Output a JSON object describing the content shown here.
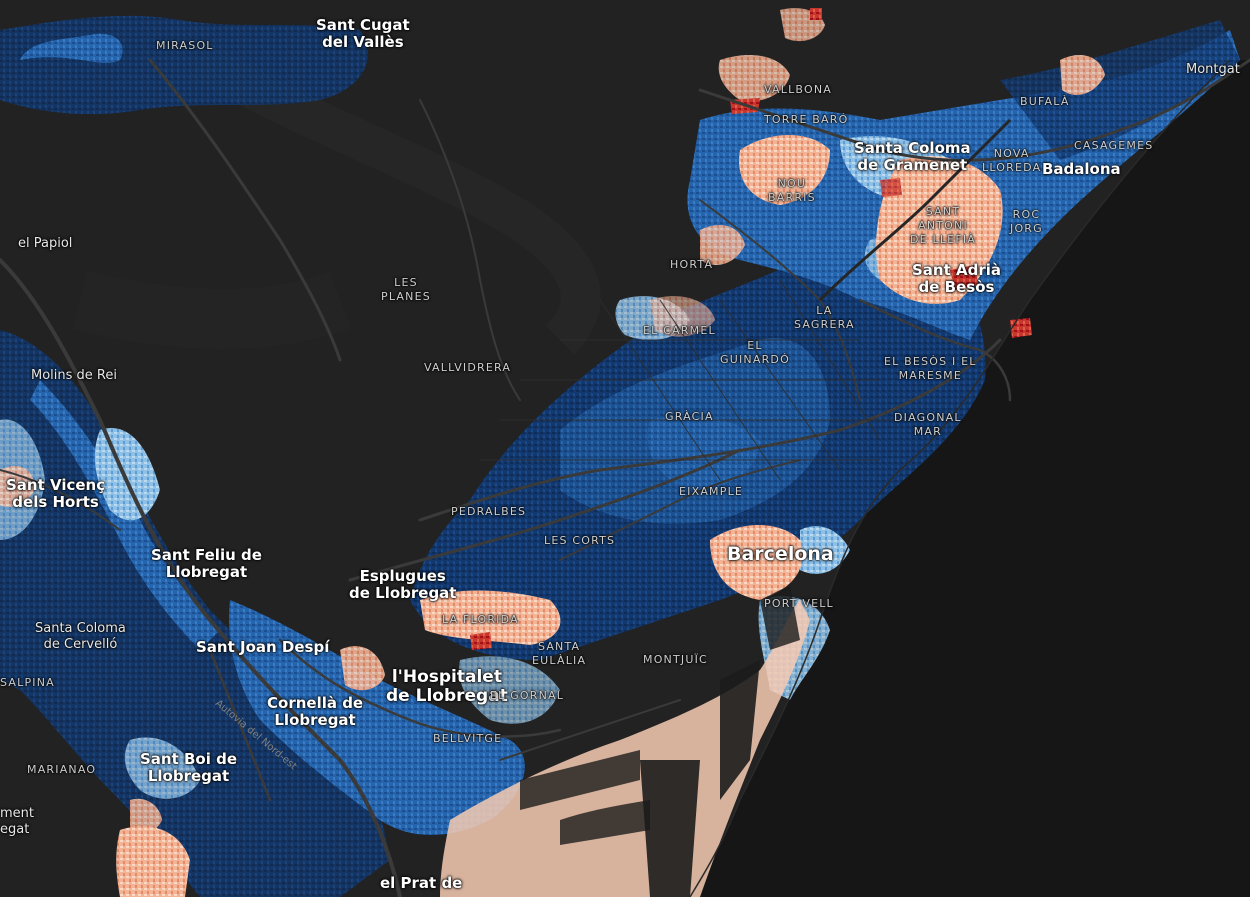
{
  "map": {
    "basemap": "dark",
    "sea_color": "#161616",
    "land_color": "#202020",
    "choropleth_palette": [
      "#08306b",
      "#1f5fa8",
      "#4a8dcc",
      "#a9d0ee",
      "#fcd5c0",
      "#f19a78",
      "#d94a3d",
      "#a50f15"
    ],
    "labels": {
      "sant_cugat": "Sant Cugat\ndel Vallès",
      "mirasol": "MIRASOL",
      "montgat": "Montgat",
      "vallbona": "VALLBONA",
      "torre_baro": "TORRE BARÓ",
      "bufala": "BUFALÀ",
      "casagemes": "CASAGEMES",
      "santa_coloma_gramenet": "Santa Coloma\nde Gramenet",
      "nova_lloreda": "NOVA\nLLOREDA",
      "badalona": "Badalona",
      "nou_barris": "NOU\nBARRIS",
      "sant_antoni_llefia": "SANT\nANTONI\nDE LLEFIÀ",
      "sant_roc": "ROC\nJORG",
      "el_papiol": "el Papiol",
      "horta": "HORTA",
      "sant_adria": "Sant Adrià\nde Besòs",
      "les_planes": "LES\nPLANES",
      "la_sagrera": "LA\nSAGRERA",
      "el_carmel": "EL CARMEL",
      "el_guinardo": "EL\nGUINARDÓ",
      "besos_maresme": "EL BESÒS I EL\nMARESME",
      "vallvidrera": "VALLVIDRERA",
      "molins_de_rei": "Molins de Rei",
      "gracia": "GRÀCIA",
      "diagonal_mar": "DIAGONAL\nMAR",
      "sant_vicenc": "Sant Vicenç\ndels Horts",
      "eixample": "EIXAMPLE",
      "pedralbes": "PEDRALBES",
      "les_corts": "LES CORTS",
      "barcelona": "Barcelona",
      "sant_feliu": "Sant Feliu de\nLlobregat",
      "esplugues": "Esplugues\nde Llobregat",
      "port_vell": "PORT VELL",
      "la_florida": "LA FLORIDA",
      "santa_coloma_cervello": "Santa Coloma\nde Cervelló",
      "sant_joan_despi": "Sant Joan Despí",
      "santa_eulalia": "SANTA\nEULÀLIA",
      "montjuic": "MONTJUÏC",
      "lhospitalet": "l'Hospitalet\nde Llobregat",
      "salpina": "SALPINA",
      "el_gornal": "EL GORNAL",
      "cornella": "Cornellà de\nLlobregat",
      "bellvitge": "BELLVITGE",
      "marianao": "MARIANAO",
      "sant_boi": "Sant Boi de\nLlobregat",
      "el_prat": "el Prat de",
      "ment_egat": "ment\negat",
      "autovia": "Autovia del Nord-est"
    }
  }
}
